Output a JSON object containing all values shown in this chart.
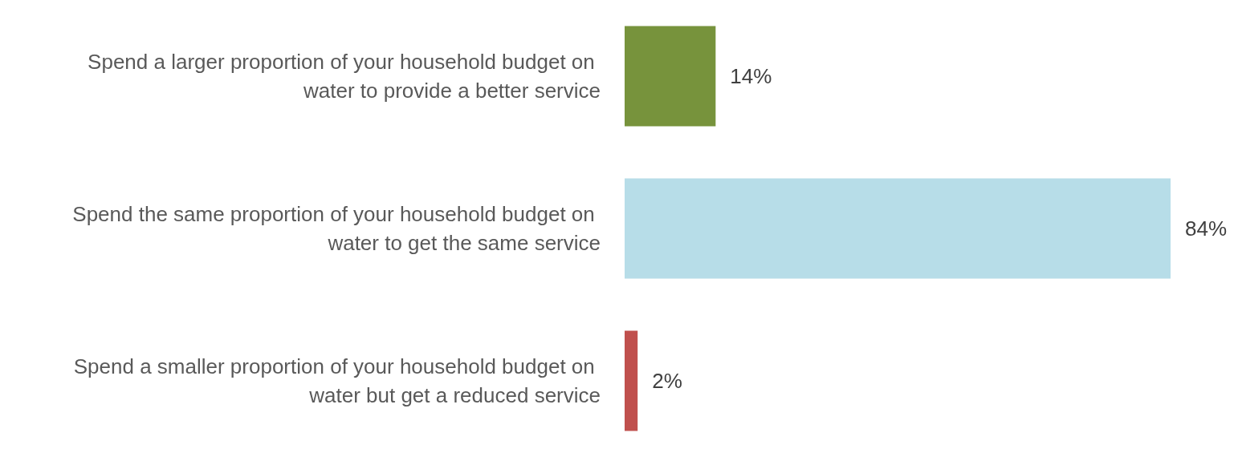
{
  "chart_data": {
    "type": "bar",
    "orientation": "horizontal",
    "categories": [
      "Spend a larger proportion of your household budget on water to provide a better service",
      "Spend the same proportion of your household budget on water to get the same service",
      "Spend a smaller proportion of your household budget on water but get a reduced service"
    ],
    "values": [
      14,
      84,
      2
    ],
    "colors": [
      "#77933c",
      "#b7dde8",
      "#c0504d"
    ],
    "value_labels": [
      "14%",
      "84%",
      "2%"
    ]
  }
}
